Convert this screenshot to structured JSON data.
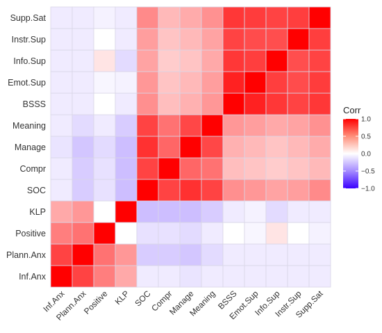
{
  "chart_data": {
    "type": "heatmap",
    "variables": [
      "Inf.Anx",
      "Plann.Anx",
      "Positive",
      "KLP",
      "SOC",
      "Compr",
      "Manage",
      "Meaning",
      "BSSS",
      "Emot.Sup",
      "Info.Sup",
      "Instr.Sup",
      "Supp.Sat"
    ],
    "legend": {
      "title": "Corr",
      "ticks": [
        {
          "value": 1.0,
          "label": "1.0"
        },
        {
          "value": 0.5,
          "label": "0.5"
        },
        {
          "value": 0.0,
          "label": "0.0"
        },
        {
          "value": -0.5,
          "label": "−0.5"
        },
        {
          "value": -1.0,
          "label": "−1.0"
        }
      ],
      "placement": "right"
    },
    "color_scale": {
      "low": "#3a00ff",
      "mid": "#ffffff",
      "high": "#ff0000",
      "limits": [
        -1,
        1
      ]
    },
    "matrix": [
      [
        1.0,
        0.7,
        0.45,
        0.28,
        -0.05,
        -0.05,
        -0.07,
        -0.05,
        -0.05,
        -0.05,
        -0.05,
        -0.05,
        -0.05
      ],
      [
        0.7,
        1.0,
        0.5,
        0.35,
        -0.15,
        -0.15,
        -0.17,
        -0.1,
        -0.05,
        -0.05,
        -0.05,
        -0.05,
        -0.05
      ],
      [
        0.45,
        0.5,
        1.0,
        0.0,
        -0.08,
        -0.08,
        -0.1,
        -0.05,
        0.0,
        -0.02,
        0.07,
        0.0,
        -0.03
      ],
      [
        0.28,
        0.35,
        0.0,
        1.0,
        -0.2,
        -0.2,
        -0.2,
        -0.15,
        -0.05,
        -0.03,
        -0.1,
        -0.05,
        -0.05
      ],
      [
        -0.05,
        -0.15,
        -0.08,
        -0.2,
        1.0,
        0.7,
        0.78,
        0.7,
        0.38,
        0.35,
        0.3,
        0.32,
        0.4
      ],
      [
        -0.05,
        -0.15,
        -0.08,
        -0.2,
        0.7,
        1.0,
        0.55,
        0.5,
        0.2,
        0.18,
        0.15,
        0.18,
        0.22
      ],
      [
        -0.07,
        -0.17,
        -0.1,
        -0.2,
        0.78,
        0.55,
        1.0,
        0.68,
        0.25,
        0.22,
        0.18,
        0.22,
        0.27
      ],
      [
        -0.05,
        -0.1,
        -0.05,
        -0.15,
        0.7,
        0.5,
        0.68,
        1.0,
        0.35,
        0.32,
        0.28,
        0.3,
        0.37
      ],
      [
        -0.05,
        -0.05,
        0.0,
        -0.05,
        0.38,
        0.2,
        0.25,
        0.35,
        1.0,
        0.85,
        0.75,
        0.7,
        0.75
      ],
      [
        -0.05,
        -0.05,
        -0.02,
        -0.03,
        0.35,
        0.18,
        0.22,
        0.32,
        0.85,
        1.0,
        0.72,
        0.66,
        0.73
      ],
      [
        -0.05,
        -0.05,
        0.07,
        -0.1,
        0.3,
        0.15,
        0.18,
        0.28,
        0.75,
        0.72,
        1.0,
        0.65,
        0.7
      ],
      [
        -0.05,
        -0.05,
        0.0,
        -0.05,
        0.32,
        0.18,
        0.22,
        0.3,
        0.7,
        0.66,
        0.65,
        1.0,
        0.72
      ],
      [
        -0.05,
        -0.05,
        -0.03,
        -0.05,
        0.4,
        0.22,
        0.27,
        0.37,
        0.75,
        0.73,
        0.7,
        0.72,
        1.0
      ]
    ]
  }
}
